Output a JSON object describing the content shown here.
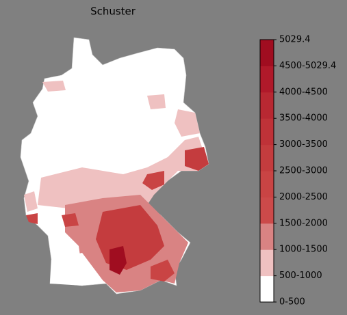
{
  "map": {
    "title": "Schuster",
    "legend": {
      "labels": [
        "0-500",
        "500-1000",
        "1000-1500",
        "1500-2000",
        "2000-2500",
        "2500-3000",
        "3000-3500",
        "3500-4000",
        "4000-4500",
        "4500-5029.4",
        "5029.4"
      ],
      "colors": [
        "#ffffff",
        "#efc1c1",
        "#d98383",
        "#cc4a4a",
        "#c94444",
        "#c43c3e",
        "#bf3238",
        "#b82832",
        "#b0192a",
        "#a00d20"
      ]
    }
  }
}
